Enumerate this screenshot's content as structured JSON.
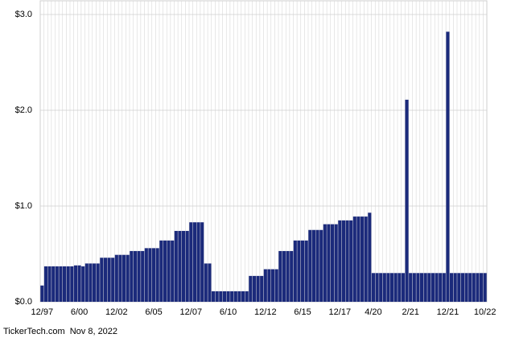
{
  "chart_data": {
    "type": "bar",
    "source": "TickerTech.com  Nov 8, 2022",
    "color": "#1b2a7b",
    "grid": true,
    "ylim": [
      0,
      3
    ],
    "yticks": [
      {
        "value": 0,
        "label": "$0.0"
      },
      {
        "value": 1,
        "label": "$1.0"
      },
      {
        "value": 2,
        "label": "$2.0"
      },
      {
        "value": 3,
        "label": "$3.0"
      }
    ],
    "categories": [
      "12/97",
      null,
      null,
      null,
      null,
      null,
      null,
      null,
      null,
      null,
      "6/00",
      null,
      null,
      null,
      null,
      null,
      null,
      null,
      null,
      null,
      "12/02",
      null,
      null,
      null,
      null,
      null,
      null,
      null,
      null,
      null,
      "6/05",
      null,
      null,
      null,
      null,
      null,
      null,
      null,
      null,
      null,
      "12/07",
      null,
      null,
      null,
      null,
      null,
      null,
      null,
      null,
      null,
      "6/10",
      null,
      null,
      null,
      null,
      null,
      null,
      null,
      null,
      null,
      "12/12",
      null,
      null,
      null,
      null,
      null,
      null,
      null,
      null,
      null,
      "6/15",
      null,
      null,
      null,
      null,
      null,
      null,
      null,
      null,
      null,
      "12/17",
      null,
      null,
      null,
      null,
      null,
      null,
      null,
      null,
      "4/20",
      null,
      null,
      null,
      null,
      null,
      null,
      null,
      null,
      null,
      "2/21",
      null,
      null,
      null,
      null,
      null,
      null,
      null,
      null,
      null,
      "12/21",
      null,
      null,
      null,
      null,
      null,
      null,
      null,
      null,
      null,
      "10/22"
    ],
    "values": [
      0.17,
      0.37,
      0.37,
      0.37,
      0.37,
      0.37,
      0.37,
      0.37,
      0.37,
      0.38,
      0.38,
      0.37,
      0.4,
      0.4,
      0.4,
      0.4,
      0.46,
      0.46,
      0.46,
      0.46,
      0.49,
      0.49,
      0.49,
      0.49,
      0.53,
      0.53,
      0.53,
      0.53,
      0.56,
      0.56,
      0.56,
      0.56,
      0.64,
      0.64,
      0.64,
      0.64,
      0.74,
      0.74,
      0.74,
      0.74,
      0.83,
      0.83,
      0.83,
      0.83,
      0.4,
      0.4,
      0.11,
      0.11,
      0.11,
      0.11,
      0.11,
      0.11,
      0.11,
      0.11,
      0.11,
      0.11,
      0.27,
      0.27,
      0.27,
      0.27,
      0.34,
      0.34,
      0.34,
      0.34,
      0.53,
      0.53,
      0.53,
      0.53,
      0.64,
      0.64,
      0.64,
      0.64,
      0.75,
      0.75,
      0.75,
      0.75,
      0.81,
      0.81,
      0.81,
      0.81,
      0.85,
      0.85,
      0.85,
      0.85,
      0.89,
      0.89,
      0.89,
      0.89,
      0.93,
      0.3,
      0.3,
      0.3,
      0.3,
      0.3,
      0.3,
      0.3,
      0.3,
      0.3,
      2.11,
      0.3,
      0.3,
      0.3,
      0.3,
      0.3,
      0.3,
      0.3,
      0.3,
      0.3,
      0.3,
      2.82,
      0.3,
      0.3,
      0.3,
      0.3,
      0.3,
      0.3,
      0.3,
      0.3,
      0.3,
      0.3
    ]
  }
}
